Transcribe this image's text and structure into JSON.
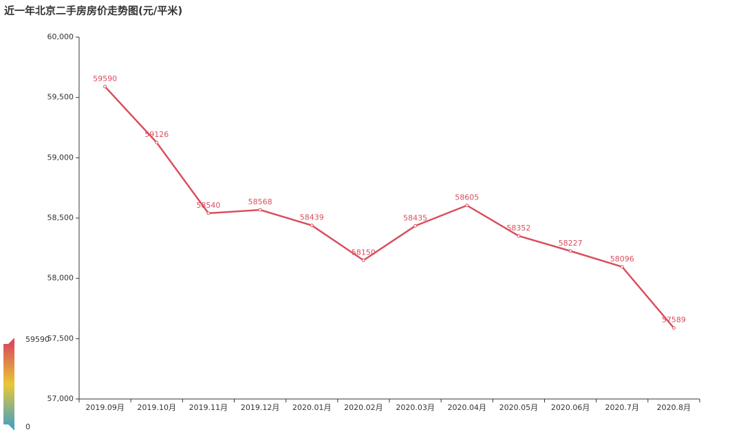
{
  "chart_data": {
    "type": "line",
    "title": "近一年北京二手房房价走势图(元/平米)",
    "categories": [
      "2019.09月",
      "2019.10月",
      "2019.11月",
      "2019.12月",
      "2020.01月",
      "2020.02月",
      "2020.03月",
      "2020.04月",
      "2020.05月",
      "2020.06月",
      "2020.7月",
      "2020.8月"
    ],
    "values": [
      59590,
      59126,
      58540,
      58568,
      58439,
      58150,
      58435,
      58605,
      58352,
      58227,
      58096,
      57589
    ],
    "color": "#d94e5d",
    "ylim": [
      57000,
      60000
    ],
    "yticks": [
      {
        "value": 57000,
        "label": "57,000"
      },
      {
        "value": 57500,
        "label": "57,500"
      },
      {
        "value": 58000,
        "label": "58,000"
      },
      {
        "value": 58500,
        "label": "58,500"
      },
      {
        "value": 59000,
        "label": "59,000"
      },
      {
        "value": 59500,
        "label": "59,500"
      },
      {
        "value": 60000,
        "label": "60,000"
      }
    ],
    "grid": false,
    "visual_map": {
      "min": 0,
      "max": 59590,
      "colors": [
        "#d94e5d",
        "#eac736",
        "#50a3ba"
      ]
    }
  }
}
